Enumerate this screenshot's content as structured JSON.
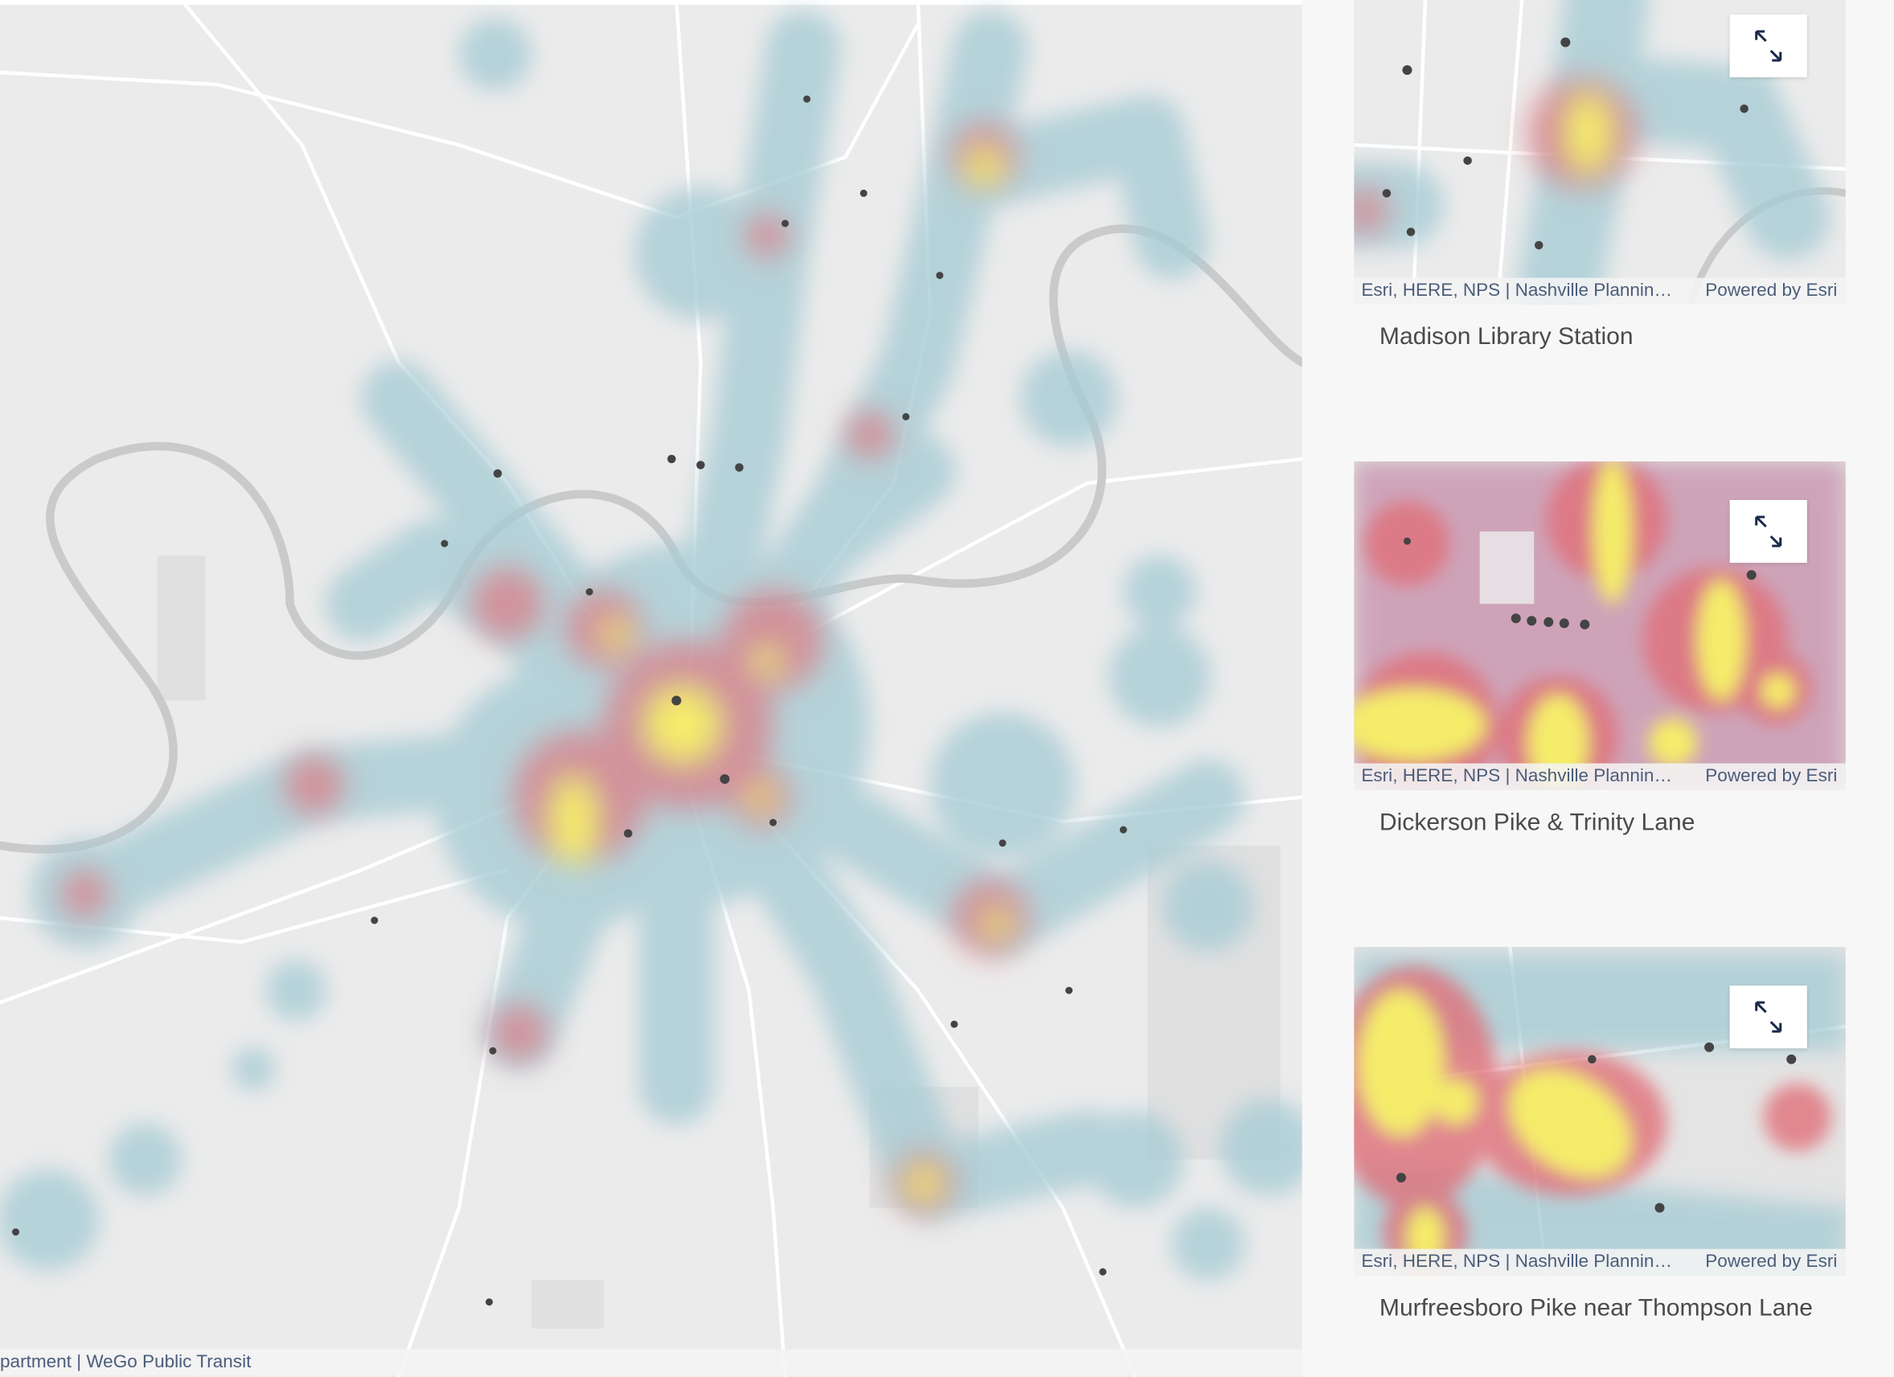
{
  "map": {
    "attribution": "partment | WeGo Public Transit"
  },
  "cards": [
    {
      "attribution": "Esri, HERE, NPS | Nashville Plannin…",
      "powered_by": "Powered by Esri",
      "title": "Madison Library Station"
    },
    {
      "attribution": "Esri, HERE, NPS | Nashville Plannin…",
      "powered_by": "Powered by Esri",
      "title": "Dickerson Pike & Trinity Lane"
    },
    {
      "attribution": "Esri, HERE, NPS | Nashville Plannin…",
      "powered_by": "Powered by Esri",
      "title": "Murfreesboro Pike near Thompson Lane"
    }
  ]
}
